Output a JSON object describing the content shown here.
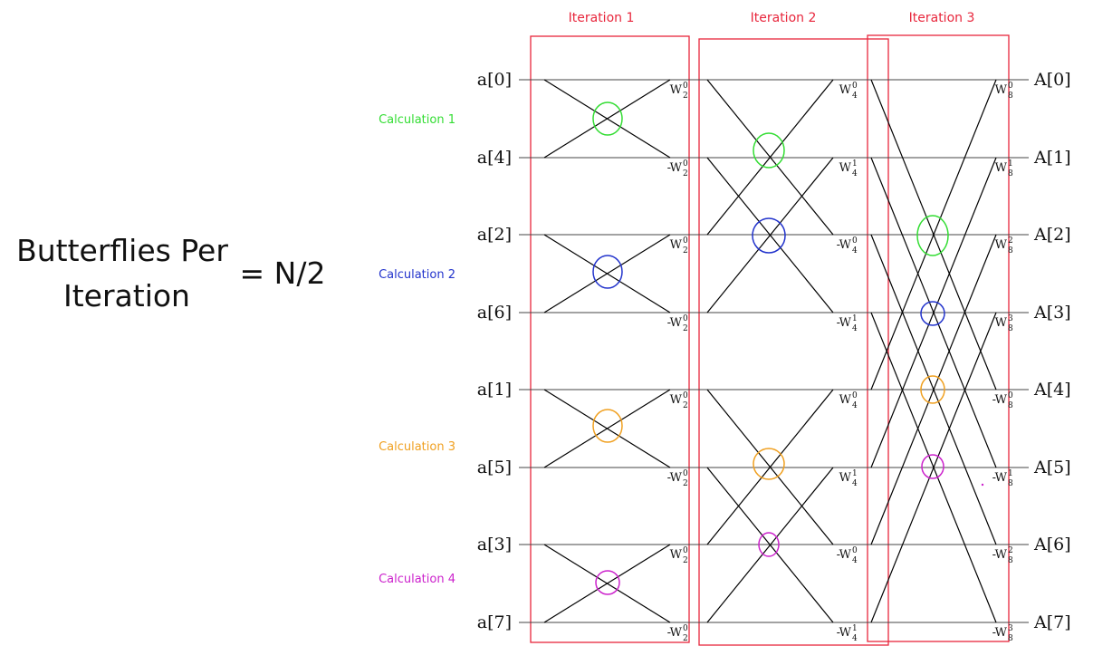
{
  "title": {
    "line1": "Butterflies Per",
    "line2": "Iteration",
    "formula": "= N/2"
  },
  "calculations": [
    {
      "label": "Calculation 1",
      "color": "#33dd33"
    },
    {
      "label": "Calculation 2",
      "color": "#2233cc"
    },
    {
      "label": "Calculation 3",
      "color": "#f0a020"
    },
    {
      "label": "Calculation 4",
      "color": "#cc22cc"
    }
  ],
  "iterations": [
    "Iteration 1",
    "Iteration 2",
    "Iteration 3"
  ],
  "input_labels": [
    "a[0]",
    "a[4]",
    "a[2]",
    "a[6]",
    "a[1]",
    "a[5]",
    "a[3]",
    "a[7]"
  ],
  "output_labels": [
    "A[0]",
    "A[1]",
    "A[2]",
    "A[3]",
    "A[4]",
    "A[5]",
    "A[6]",
    "A[7]"
  ],
  "twiddles": {
    "stage1": [
      {
        "sign": "",
        "base": "W",
        "sub": "2",
        "sup": "0"
      },
      {
        "sign": "-",
        "base": "W",
        "sub": "2",
        "sup": "0"
      },
      {
        "sign": "",
        "base": "W",
        "sub": "2",
        "sup": "0"
      },
      {
        "sign": "-",
        "base": "W",
        "sub": "2",
        "sup": "0"
      },
      {
        "sign": "",
        "base": "W",
        "sub": "2",
        "sup": "0"
      },
      {
        "sign": "-",
        "base": "W",
        "sub": "2",
        "sup": "0"
      },
      {
        "sign": "",
        "base": "W",
        "sub": "2",
        "sup": "0"
      },
      {
        "sign": "-",
        "base": "W",
        "sub": "2",
        "sup": "0"
      }
    ],
    "stage2": [
      {
        "sign": "",
        "base": "W",
        "sub": "4",
        "sup": "0"
      },
      {
        "sign": "",
        "base": "W",
        "sub": "4",
        "sup": "1"
      },
      {
        "sign": "-",
        "base": "W",
        "sub": "4",
        "sup": "0"
      },
      {
        "sign": "-",
        "base": "W",
        "sub": "4",
        "sup": "1"
      },
      {
        "sign": "",
        "base": "W",
        "sub": "4",
        "sup": "0"
      },
      {
        "sign": "",
        "base": "W",
        "sub": "4",
        "sup": "1"
      },
      {
        "sign": "-",
        "base": "W",
        "sub": "4",
        "sup": "0"
      },
      {
        "sign": "-",
        "base": "W",
        "sub": "4",
        "sup": "1"
      }
    ],
    "stage3": [
      {
        "sign": "",
        "base": "W",
        "sub": "8",
        "sup": "0"
      },
      {
        "sign": "",
        "base": "W",
        "sub": "8",
        "sup": "1"
      },
      {
        "sign": "",
        "base": "W",
        "sub": "8",
        "sup": "2"
      },
      {
        "sign": "",
        "base": "W",
        "sub": "8",
        "sup": "3"
      },
      {
        "sign": "-",
        "base": "W",
        "sub": "8",
        "sup": "0"
      },
      {
        "sign": "-",
        "base": "W",
        "sub": "8",
        "sup": "1"
      },
      {
        "sign": "-",
        "base": "W",
        "sub": "8",
        "sup": "2"
      },
      {
        "sign": "-",
        "base": "W",
        "sub": "8",
        "sup": "3"
      }
    ]
  }
}
